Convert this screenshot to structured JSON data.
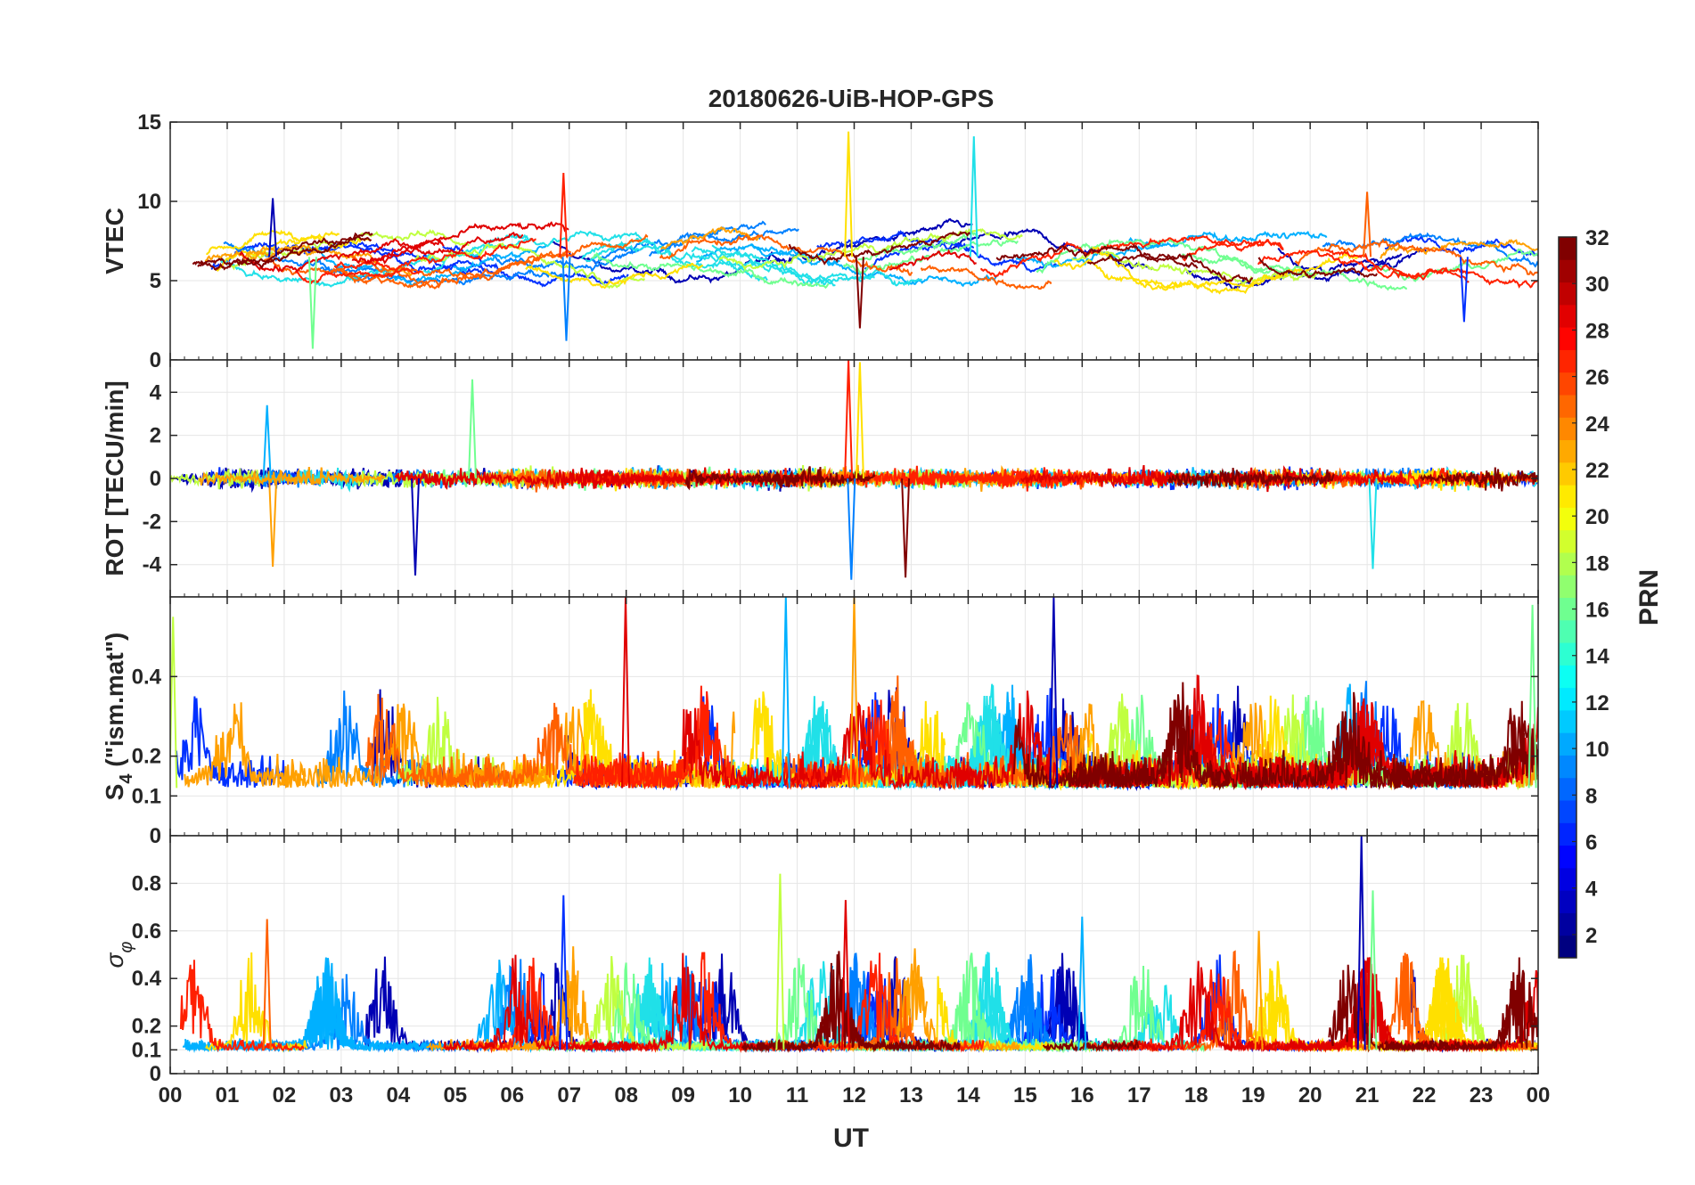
{
  "chart_data": {
    "type": "line",
    "title": "20180626-UiB-HOP-GPS",
    "xlabel": "UT",
    "x_range_hours": [
      0,
      24
    ],
    "x_tick_labels": [
      "00",
      "01",
      "02",
      "03",
      "04",
      "05",
      "06",
      "07",
      "08",
      "09",
      "10",
      "11",
      "12",
      "13",
      "14",
      "15",
      "16",
      "17",
      "18",
      "19",
      "20",
      "21",
      "22",
      "23",
      "00"
    ],
    "grid": true,
    "panels": [
      {
        "id": "vtec",
        "ylabel": "VTEC",
        "ylim": [
          0,
          15
        ],
        "y_ticks": [
          0,
          5,
          10,
          15
        ],
        "y_tick_labels": [
          "0",
          "5",
          "10",
          "15"
        ],
        "baseline": 6.5,
        "spread": 1.6,
        "spikes": [
          {
            "hour": 1.8,
            "value": 10.2
          },
          {
            "hour": 2.5,
            "value": 0.7
          },
          {
            "hour": 6.9,
            "value": 11.8
          },
          {
            "hour": 6.95,
            "value": 1.2
          },
          {
            "hour": 11.9,
            "value": 14.4
          },
          {
            "hour": 12.1,
            "value": 2.0
          },
          {
            "hour": 14.1,
            "value": 14.1
          },
          {
            "hour": 21.0,
            "value": 10.6
          },
          {
            "hour": 22.7,
            "value": 2.4
          }
        ]
      },
      {
        "id": "rot",
        "ylabel": "ROT [TECU/min]",
        "ylim": [
          -5.5,
          5.5
        ],
        "y_ticks": [
          -4,
          -2,
          0,
          2,
          4
        ],
        "y_tick_labels": [
          "-4",
          "-2",
          "0",
          "2",
          "4"
        ],
        "baseline": 0,
        "spread": 0.4,
        "spikes": [
          {
            "hour": 1.7,
            "value": 3.4
          },
          {
            "hour": 1.8,
            "value": -4.1
          },
          {
            "hour": 4.3,
            "value": -4.5
          },
          {
            "hour": 5.3,
            "value": 4.6
          },
          {
            "hour": 11.9,
            "value": 5.5
          },
          {
            "hour": 11.95,
            "value": -4.7
          },
          {
            "hour": 12.1,
            "value": 5.4
          },
          {
            "hour": 12.9,
            "value": -4.6
          },
          {
            "hour": 21.1,
            "value": -4.2
          }
        ]
      },
      {
        "id": "s4",
        "ylabel": "S4 (\"ism.mat\")",
        "ylabel_main": "S",
        "ylabel_sub": "4",
        "ylabel_rest": " (\"ism.mat\")",
        "ylim": [
          0,
          0.6
        ],
        "y_ticks": [
          0,
          0.1,
          0.2,
          0.4
        ],
        "y_tick_labels": [
          "0",
          "0.1",
          "0.2",
          "0.4"
        ],
        "baseline": 0.12,
        "spread": 0.06,
        "spikes": [
          {
            "hour": 0.05,
            "value": 0.55
          },
          {
            "hour": 7.99,
            "value": 0.6
          },
          {
            "hour": 10.8,
            "value": 0.6
          },
          {
            "hour": 12.0,
            "value": 0.6
          },
          {
            "hour": 15.5,
            "value": 0.6
          },
          {
            "hour": 23.9,
            "value": 0.58
          }
        ]
      },
      {
        "id": "sigma",
        "ylabel": "σ φ",
        "ylabel_main": "σ",
        "ylabel_sub": "φ",
        "ylim": [
          0,
          1
        ],
        "y_ticks": [
          0,
          0.1,
          0.2,
          0.4,
          0.6,
          0.8
        ],
        "y_tick_labels": [
          "0",
          "0.1",
          "0.2",
          "0.4",
          "0.6",
          "0.8"
        ],
        "baseline": 0.1,
        "spread": 0.03,
        "spikes": [
          {
            "hour": 1.7,
            "value": 0.65
          },
          {
            "hour": 6.9,
            "value": 0.75
          },
          {
            "hour": 10.7,
            "value": 0.84
          },
          {
            "hour": 11.85,
            "value": 0.73
          },
          {
            "hour": 16.0,
            "value": 0.66
          },
          {
            "hour": 19.1,
            "value": 0.6
          },
          {
            "hour": 20.9,
            "value": 1.0
          },
          {
            "hour": 21.1,
            "value": 0.77
          }
        ]
      }
    ],
    "colorbar": {
      "label": "PRN",
      "range": [
        1,
        32
      ],
      "tick_labels": [
        "2",
        "4",
        "6",
        "8",
        "10",
        "12",
        "14",
        "16",
        "18",
        "20",
        "22",
        "24",
        "26",
        "28",
        "30",
        "32"
      ],
      "colormap": "jet",
      "levels": 32
    },
    "series": [
      {
        "prn": 2,
        "color": "#0000b4"
      },
      {
        "prn": 5,
        "color": "#0030ff"
      },
      {
        "prn": 8,
        "color": "#0080ff"
      },
      {
        "prn": 10,
        "color": "#00b0ff"
      },
      {
        "prn": 12,
        "color": "#20e0e8"
      },
      {
        "prn": 15,
        "color": "#70ff90"
      },
      {
        "prn": 18,
        "color": "#c0ff40"
      },
      {
        "prn": 20,
        "color": "#ffe000"
      },
      {
        "prn": 22,
        "color": "#ffa000"
      },
      {
        "prn": 25,
        "color": "#ff6000"
      },
      {
        "prn": 27,
        "color": "#ff2000"
      },
      {
        "prn": 29,
        "color": "#e00000"
      },
      {
        "prn": 32,
        "color": "#800000"
      }
    ]
  }
}
